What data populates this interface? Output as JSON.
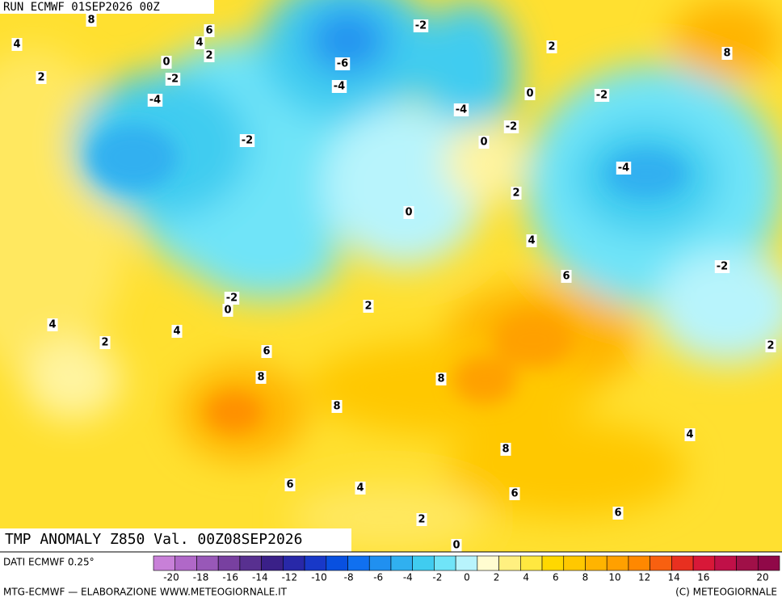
{
  "header": {
    "run": "RUN ECMWF 01SEP2026 00Z",
    "title": "TMP ANOMALY Z850 Val. 00Z08SEP2026"
  },
  "footer": {
    "source": "DATI ECMWF 0.25°",
    "credit": "MTG-ECMWF — ELABORAZIONE WWW.METEOGIORNALE.IT",
    "copyright": "(C) METEOGIORNALE"
  },
  "colorbar": {
    "ticks": [
      -20,
      -18,
      -16,
      -14,
      -12,
      -10,
      -8,
      -6,
      -4,
      -2,
      0,
      2,
      4,
      6,
      8,
      10,
      12,
      14,
      16,
      20
    ],
    "colors": [
      "#c880d8",
      "#b068c8",
      "#9858b8",
      "#7840a0",
      "#583090",
      "#3a2088",
      "#2828a8",
      "#1838c8",
      "#0850e0",
      "#1070f0",
      "#2090f0",
      "#30b0f0",
      "#40ccf0",
      "#70e4f8",
      "#b8f4fc",
      "#fffcd0",
      "#fff080",
      "#ffe840",
      "#ffd800",
      "#ffc800",
      "#ffb400",
      "#ffa000",
      "#ff8800",
      "#f86010",
      "#e83020",
      "#d81838",
      "#c01048",
      "#a01048",
      "#900848"
    ]
  },
  "map": {
    "contour_labels": [
      8,
      6,
      4,
      2,
      4,
      0,
      2,
      -2,
      -4,
      -2,
      -6,
      -4,
      -2,
      2,
      8,
      0,
      -2,
      -4,
      -2,
      0,
      2,
      -4,
      0,
      4,
      -2,
      6,
      -2,
      0,
      2,
      4,
      4,
      2,
      6,
      2,
      8,
      8,
      8,
      4,
      8,
      6,
      4,
      6,
      6,
      2,
      0
    ]
  }
}
